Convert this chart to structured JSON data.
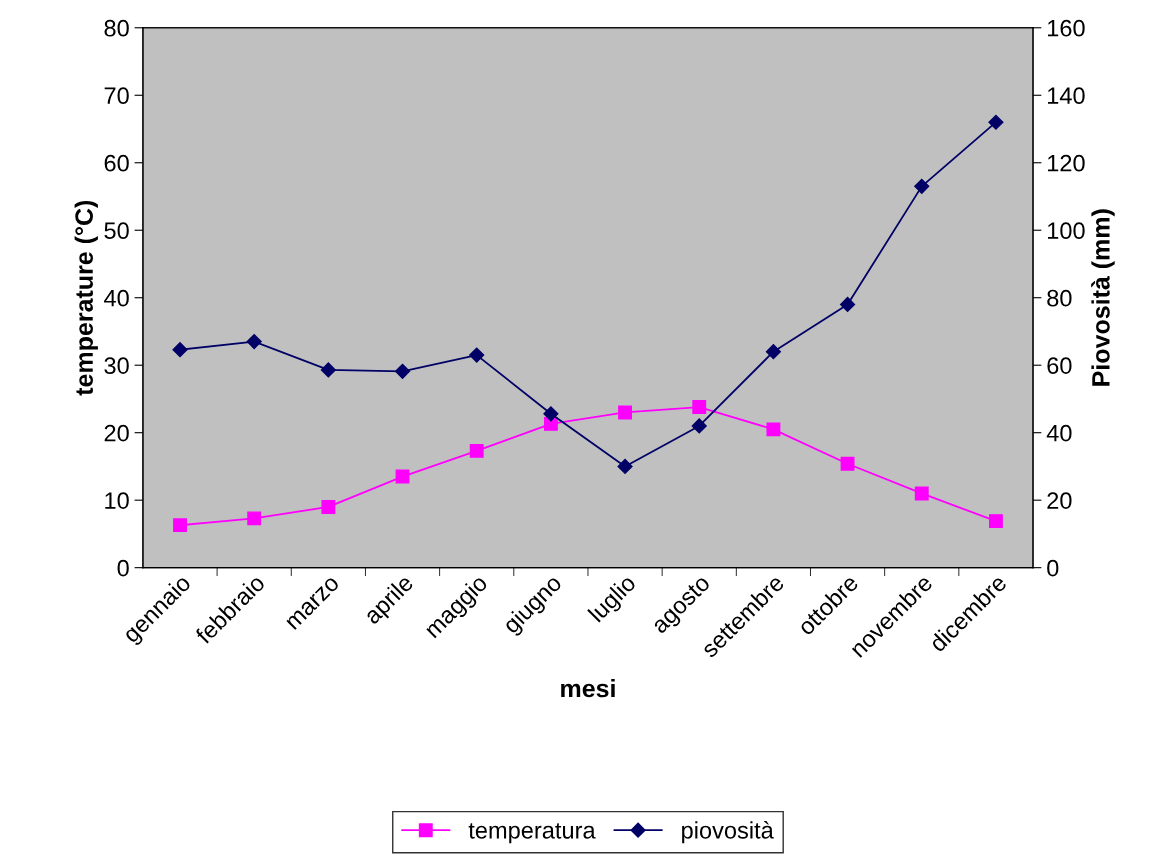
{
  "chart_data": {
    "type": "line",
    "xlabel": "mesi",
    "ylabel": "temperature (°C)",
    "y2label": "Piovosità (mm)",
    "categories": [
      "gennaio",
      "febbraio",
      "marzo",
      "aprile",
      "maggio",
      "giugno",
      "luglio",
      "agosto",
      "settembre",
      "ottobre",
      "novembre",
      "dicembre"
    ],
    "series": [
      {
        "name": "temperatura",
        "color": "#ff00ff",
        "marker": "square",
        "values": [
          6.3,
          7.3,
          9.0,
          13.5,
          17.3,
          21.3,
          23.0,
          23.8,
          20.5,
          15.4,
          11.0,
          6.9
        ]
      },
      {
        "name": "piovosità",
        "color": "#000066",
        "marker": "diamond",
        "axis": "y2",
        "values": [
          64.6,
          67,
          58.6,
          58.2,
          63,
          45.6,
          30,
          42,
          64,
          78,
          113,
          132
        ]
      }
    ],
    "ylim": [
      0,
      80
    ],
    "yticks": [
      0,
      10,
      20,
      30,
      40,
      50,
      60,
      70,
      80
    ],
    "y2lim": [
      0,
      160
    ],
    "y2ticks": [
      0,
      20,
      40,
      60,
      80,
      100,
      120,
      140,
      160
    ],
    "grid": false,
    "legend": "bottom",
    "line_style": "solid"
  }
}
